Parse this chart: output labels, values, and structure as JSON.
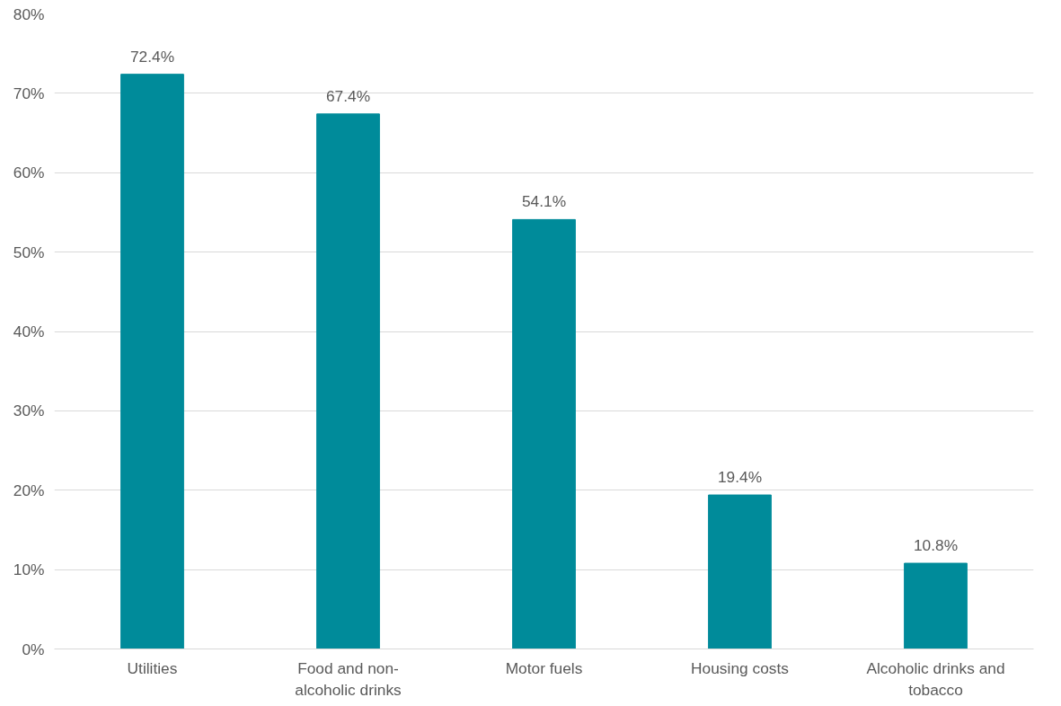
{
  "chart_data": {
    "type": "bar",
    "categories": [
      "Utilities",
      "Food and non-alcoholic drinks",
      "Motor fuels",
      "Housing costs",
      "Alcoholic drinks and tobacco"
    ],
    "values": [
      72.4,
      67.4,
      54.1,
      19.4,
      10.8
    ],
    "value_labels": [
      "72.4%",
      "67.4%",
      "54.1%",
      "19.4%",
      "10.8%"
    ],
    "color": "#008b9a",
    "ylim": [
      0,
      80
    ],
    "yticks": [
      {
        "value": 0,
        "label": "0%"
      },
      {
        "value": 10,
        "label": "10%"
      },
      {
        "value": 20,
        "label": "20%"
      },
      {
        "value": 30,
        "label": "30%"
      },
      {
        "value": 40,
        "label": "40%"
      },
      {
        "value": 50,
        "label": "50%"
      },
      {
        "value": 60,
        "label": "60%"
      },
      {
        "value": 70,
        "label": "70%"
      },
      {
        "value": 80,
        "label": "80%"
      }
    ],
    "grid": "y"
  }
}
